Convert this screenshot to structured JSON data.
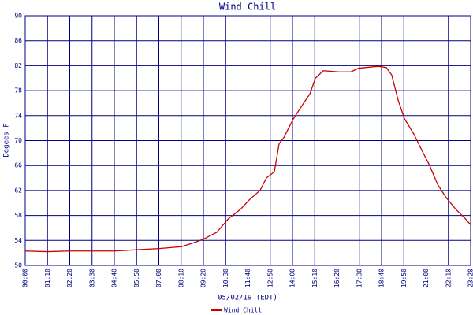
{
  "chart_data": {
    "type": "line",
    "title": "Wind Chill",
    "xlabel": "05/02/19 (EDT)",
    "ylabel": "Degees F",
    "xlim": [
      0,
      1400
    ],
    "ylim": [
      50,
      90
    ],
    "yticks": [
      50,
      54,
      58,
      62,
      66,
      70,
      74,
      78,
      82,
      86,
      90
    ],
    "xticks": [
      {
        "value": 0,
        "label": "00:00"
      },
      {
        "value": 70,
        "label": "01:10"
      },
      {
        "value": 140,
        "label": "02:20"
      },
      {
        "value": 210,
        "label": "03:30"
      },
      {
        "value": 280,
        "label": "04:40"
      },
      {
        "value": 350,
        "label": "05:50"
      },
      {
        "value": 420,
        "label": "07:00"
      },
      {
        "value": 490,
        "label": "08:10"
      },
      {
        "value": 560,
        "label": "09:20"
      },
      {
        "value": 630,
        "label": "10:30"
      },
      {
        "value": 700,
        "label": "11:40"
      },
      {
        "value": 770,
        "label": "12:50"
      },
      {
        "value": 840,
        "label": "14:00"
      },
      {
        "value": 910,
        "label": "15:10"
      },
      {
        "value": 980,
        "label": "16:20"
      },
      {
        "value": 1050,
        "label": "17:30"
      },
      {
        "value": 1120,
        "label": "18:40"
      },
      {
        "value": 1190,
        "label": "19:50"
      },
      {
        "value": 1260,
        "label": "21:00"
      },
      {
        "value": 1330,
        "label": "22:10"
      },
      {
        "value": 1400,
        "label": "23:20"
      }
    ],
    "grid": true,
    "grid_color": "#000080",
    "series": [
      {
        "name": "Wind Chill",
        "color": "#cc0000",
        "x": [
          0,
          69,
          139,
          280,
          349,
          421,
          491,
          528,
          560,
          602,
          639,
          677,
          704,
          738,
          758,
          783,
          798,
          813,
          843,
          875,
          895,
          912,
          937,
          986,
          1023,
          1048,
          1110,
          1135,
          1152,
          1172,
          1192,
          1222,
          1246,
          1271,
          1296,
          1321,
          1353,
          1383,
          1400
        ],
        "values": [
          52.3,
          52.2,
          52.3,
          52.3,
          52.5,
          52.7,
          53.0,
          53.6,
          54.2,
          55.3,
          57.5,
          59.0,
          60.5,
          62.0,
          64.0,
          65.0,
          69.5,
          70.5,
          73.5,
          76.0,
          77.5,
          80.0,
          81.2,
          81.0,
          81.0,
          81.6,
          81.9,
          81.7,
          80.5,
          76.5,
          73.5,
          71.0,
          68.5,
          66.0,
          63.0,
          61.0,
          59.0,
          57.5,
          56.5
        ]
      }
    ]
  }
}
